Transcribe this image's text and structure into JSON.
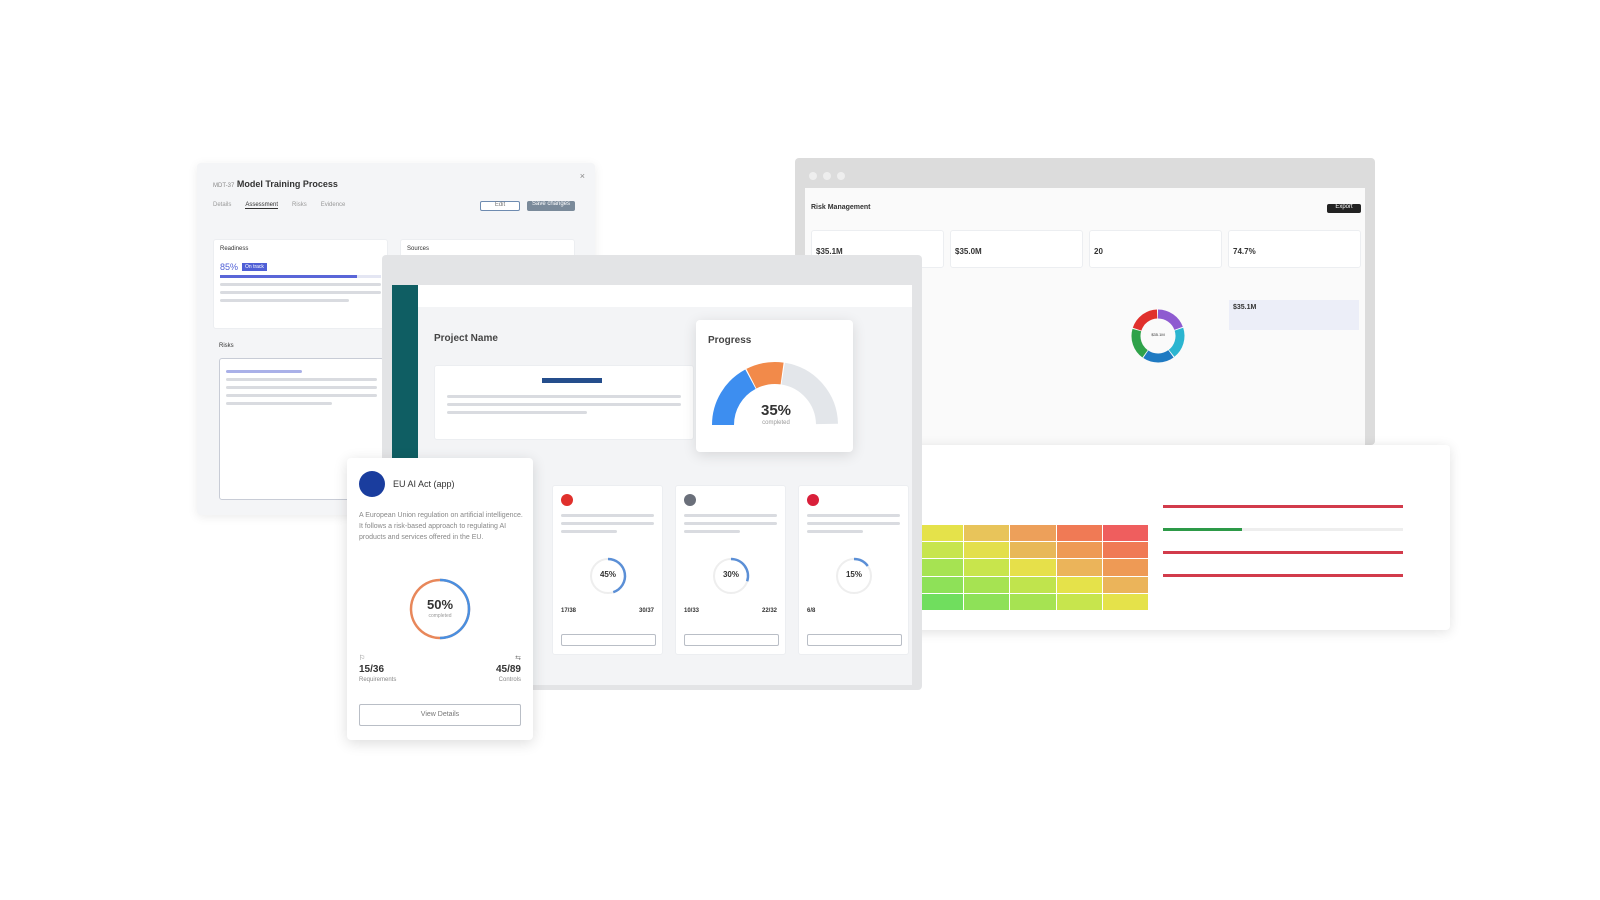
{
  "training": {
    "id": "MDT-37",
    "title": "Model Training Process",
    "tabs": [
      "Details",
      "Assessment",
      "Risks",
      "Evidence"
    ],
    "active_tab": 1,
    "buttons": [
      "Edit",
      "Save changes"
    ],
    "readiness_label": "Readiness",
    "readiness_pct": "85%",
    "readiness_value": 85,
    "badge": "On track",
    "sources_label": "Sources",
    "risks_label": "Risks",
    "accent": "#4f5fd6"
  },
  "risk_mgmt": {
    "title": "Risk Management",
    "export_label": "Export",
    "kpis": [
      {
        "value": "$35.1M"
      },
      {
        "value": "$35.0M"
      },
      {
        "value": "20"
      },
      {
        "value": "74.7%"
      }
    ],
    "donut_center": "$35.1M",
    "highlight_value": "$35.1M",
    "donut_colors": [
      "#8e5bd0",
      "#2bb5d0",
      "#1f7ac2",
      "#2fa24a",
      "#e0302c"
    ]
  },
  "project": {
    "title": "Project Name",
    "sidebar_color": "#0f5e63",
    "frameworks": [
      {
        "pct": "45%",
        "left": "17/38",
        "right": "30/37",
        "value": 45,
        "color": "#e0302c"
      },
      {
        "pct": "30%",
        "left": "10/33",
        "right": "22/32",
        "value": 30,
        "color": "#6a6f7a"
      },
      {
        "pct": "15%",
        "left": "6/8",
        "right": "",
        "value": 15,
        "color": "#d91f3a"
      }
    ]
  },
  "progress": {
    "title": "Progress",
    "pct": "35%",
    "value": 35,
    "caption": "completed",
    "colors": {
      "done": "#3d8ef0",
      "in_progress": "#f28a4a",
      "todo": "#e3e6ea"
    }
  },
  "eu_card": {
    "title": "EU AI Act (app)",
    "description": "A European Union regulation on artificial intelligence. It follows a risk-based approach to regulating AI products and services offered in the EU.",
    "pct": "50%",
    "value": 50,
    "caption": "completed",
    "requirements_value": "15/36",
    "requirements_label": "Requirements",
    "controls_value": "45/89",
    "controls_label": "Controls",
    "button": "View Details"
  },
  "heatmap": {
    "colors": [
      [
        "#e5e24a",
        "#e8c45a",
        "#eda05a",
        "#f07a55",
        "#ef5e5e"
      ],
      [
        "#c7e54d",
        "#e3df4c",
        "#e8b858",
        "#ee9a55",
        "#f07a55"
      ],
      [
        "#a6e352",
        "#c8e54c",
        "#e6e04a",
        "#ebb45a",
        "#ee9a55"
      ],
      [
        "#8ee158",
        "#a6e352",
        "#c0e44d",
        "#e5e24a",
        "#ebb45a"
      ],
      [
        "#70de5e",
        "#8ee158",
        "#a6e352",
        "#c7e54d",
        "#e5e24a"
      ]
    ],
    "bars": [
      {
        "value": 100,
        "color": "#d23b4b"
      },
      {
        "value": 33,
        "color": "#2d9a48"
      },
      {
        "value": 100,
        "color": "#d23b4b"
      },
      {
        "value": 100,
        "color": "#d23b4b"
      }
    ]
  }
}
